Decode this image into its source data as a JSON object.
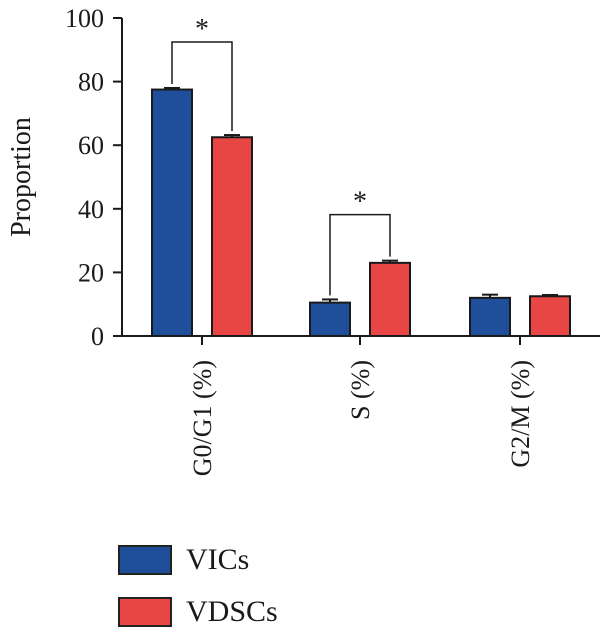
{
  "chart_data": {
    "type": "bar",
    "categories": [
      "G0/G1 (%)",
      "S (%)",
      "G2/M (%)"
    ],
    "series": [
      {
        "name": "VICs",
        "color": "#1f4e9a",
        "values": [
          77.5,
          10.5,
          12.0
        ],
        "errors": [
          0.5,
          1.0,
          1.0
        ]
      },
      {
        "name": "VDSCs",
        "color": "#e84545",
        "values": [
          62.5,
          23.0,
          12.5
        ],
        "errors": [
          0.7,
          0.7,
          0.4
        ]
      }
    ],
    "title": "",
    "xlabel": "",
    "ylabel": "Proportion",
    "ylim": [
      0,
      100
    ],
    "yticks": [
      0,
      20,
      40,
      60,
      80,
      100
    ],
    "significance": [
      {
        "category": "G0/G1 (%)",
        "label": "*"
      },
      {
        "category": "S (%)",
        "label": "*"
      }
    ],
    "legend_position": "bottom-left"
  }
}
